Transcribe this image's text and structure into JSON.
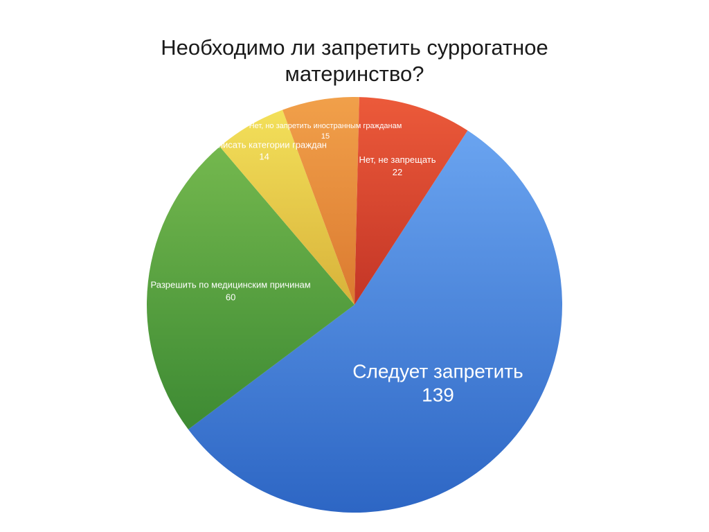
{
  "title_lines": [
    "Необходимо ли запретить суррогатное",
    "материнство?"
  ],
  "chart_data": {
    "type": "pie",
    "title": "Необходимо ли запретить суррогатное материнство?",
    "slices": [
      {
        "label": "Следует запретить",
        "value": 139,
        "color_top": "#6aa4f0",
        "color_bottom": "#2d66c4"
      },
      {
        "label": "Разрешить по медицинским причинам",
        "value": 60,
        "color_top": "#74b84e",
        "color_bottom": "#3d8a33"
      },
      {
        "label": "Прописать категории граждан",
        "value": 14,
        "color_top": "#f3e05a",
        "color_bottom": "#d8b23a"
      },
      {
        "label": "Нет, но запретить иностранным гражданам",
        "value": 15,
        "color_top": "#f1a04a",
        "color_bottom": "#db7a30"
      },
      {
        "label": "Нет, не запрещать",
        "value": 22,
        "color_top": "#ec5a3a",
        "color_bottom": "#c33526"
      }
    ],
    "start_angle_deg": -57,
    "direction": "clockwise",
    "legend": "none",
    "labels": "on-slices"
  }
}
